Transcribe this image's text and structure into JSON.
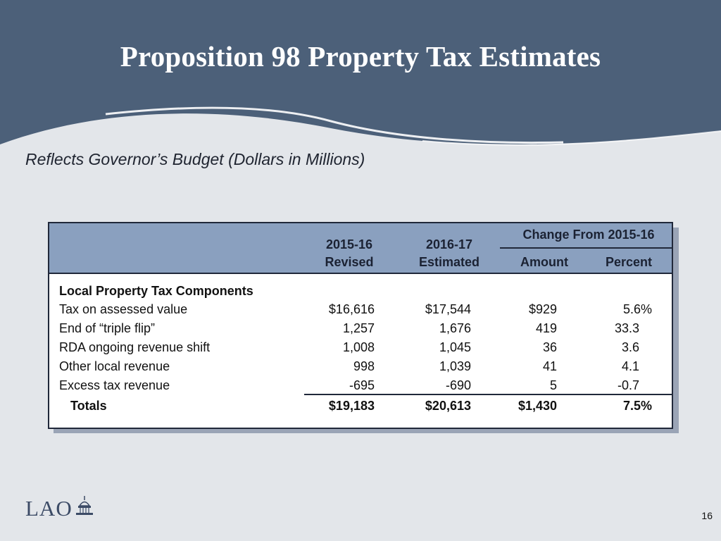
{
  "slide": {
    "title": "Proposition 98 Property Tax Estimates",
    "subtitle": "Reflects Governor’s Budget (Dollars in Millions)",
    "page_number": "16",
    "logo_text": "LAO"
  },
  "colors": {
    "header_band": "#4c6079",
    "table_header": "#8aa0bf",
    "background": "#e3e6ea"
  },
  "table": {
    "headers": {
      "revised_line1": "2015-16",
      "revised_line2": "Revised",
      "estimated_line1": "2016-17",
      "estimated_line2": "Estimated",
      "change_group": "Change From 2015-16",
      "amount": "Amount",
      "percent": "Percent"
    },
    "section_label": "Local Property Tax Components",
    "rows": [
      {
        "label": "Tax on assessed value",
        "revised": "$16,616",
        "estimated": "$17,544",
        "amount": "$929",
        "percent": "5.6%"
      },
      {
        "label": "End of “triple flip”",
        "revised": "1,257",
        "estimated": "1,676",
        "amount": "419",
        "percent": "33.3"
      },
      {
        "label": "RDA ongoing revenue shift",
        "revised": "1,008",
        "estimated": "1,045",
        "amount": "36",
        "percent": "3.6"
      },
      {
        "label": "Other local revenue",
        "revised": "998",
        "estimated": "1,039",
        "amount": "41",
        "percent": "4.1"
      },
      {
        "label": "Excess tax revenue",
        "revised": "-695",
        "estimated": "-690",
        "amount": "5",
        "percent": "-0.7"
      }
    ],
    "totals": {
      "label": "Totals",
      "revised": "$19,183",
      "estimated": "$20,613",
      "amount": "$1,430",
      "percent": "7.5%"
    }
  }
}
